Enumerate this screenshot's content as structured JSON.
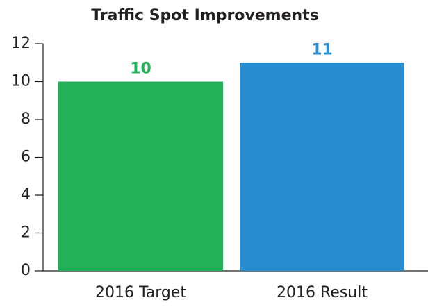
{
  "chart_data": {
    "type": "bar",
    "title": "Traffic Spot Improvements",
    "categories": [
      "2016 Target",
      "2016 Result"
    ],
    "values": [
      10,
      11
    ],
    "colors": [
      "#22b159",
      "#268ed0"
    ],
    "ylim": [
      0,
      12
    ],
    "yticks": [
      0,
      2,
      4,
      6,
      8,
      10,
      12
    ],
    "grid": false
  }
}
